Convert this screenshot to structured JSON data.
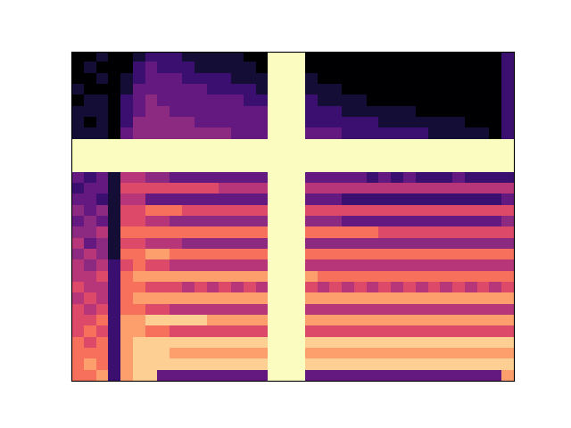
{
  "chart_data": {
    "type": "heatmap",
    "color": "magma",
    "tick_labels": false,
    "value_range": [
      0,
      10
    ],
    "cells": [
      [
        0,
        0,
        1,
        0,
        0,
        1,
        2,
        2,
        2,
        1,
        1,
        1,
        1,
        1,
        0,
        0,
        10,
        10,
        10,
        0,
        0,
        0,
        0,
        0,
        0,
        0,
        0,
        0,
        0,
        0,
        0,
        0,
        0,
        0,
        0,
        2
      ],
      [
        0,
        1,
        0,
        0,
        0,
        2,
        3,
        2,
        2,
        2,
        1,
        1,
        1,
        1,
        1,
        0,
        10,
        10,
        10,
        0,
        0,
        0,
        0,
        0,
        0,
        0,
        0,
        0,
        0,
        0,
        0,
        0,
        0,
        0,
        0,
        2
      ],
      [
        0,
        0,
        1,
        0,
        1,
        2,
        3,
        3,
        3,
        2,
        2,
        2,
        2,
        1,
        1,
        1,
        10,
        10,
        10,
        1,
        0,
        0,
        0,
        0,
        0,
        0,
        0,
        0,
        0,
        0,
        0,
        0,
        0,
        0,
        0,
        2
      ],
      [
        1,
        0,
        0,
        0,
        1,
        3,
        3,
        3,
        3,
        3,
        3,
        2,
        2,
        2,
        2,
        1,
        10,
        10,
        10,
        1,
        1,
        1,
        0,
        0,
        0,
        0,
        0,
        0,
        0,
        0,
        0,
        0,
        0,
        0,
        0,
        2
      ],
      [
        0,
        1,
        1,
        0,
        2,
        3,
        4,
        3,
        3,
        3,
        3,
        3,
        3,
        3,
        2,
        2,
        10,
        10,
        10,
        2,
        1,
        1,
        1,
        1,
        0,
        0,
        0,
        0,
        0,
        0,
        0,
        0,
        0,
        0,
        0,
        2
      ],
      [
        1,
        1,
        1,
        0,
        2,
        3,
        4,
        4,
        3,
        3,
        3,
        3,
        3,
        3,
        3,
        3,
        10,
        10,
        10,
        2,
        2,
        2,
        1,
        1,
        1,
        1,
        1,
        1,
        0,
        0,
        0,
        0,
        0,
        0,
        0,
        2
      ],
      [
        1,
        0,
        1,
        0,
        2,
        4,
        4,
        4,
        4,
        4,
        3,
        3,
        3,
        3,
        3,
        3,
        10,
        10,
        10,
        2,
        2,
        2,
        2,
        2,
        2,
        1,
        1,
        1,
        1,
        1,
        1,
        1,
        0,
        0,
        0,
        2
      ],
      [
        1,
        1,
        1,
        0,
        3,
        4,
        4,
        4,
        4,
        4,
        4,
        4,
        4,
        3,
        3,
        3,
        10,
        10,
        10,
        3,
        3,
        3,
        2,
        2,
        2,
        2,
        2,
        2,
        2,
        1,
        1,
        1,
        1,
        1,
        0,
        2
      ],
      [
        10,
        10,
        10,
        10,
        10,
        10,
        10,
        10,
        10,
        10,
        10,
        10,
        10,
        10,
        10,
        10,
        10,
        10,
        10,
        10,
        10,
        10,
        10,
        10,
        10,
        10,
        10,
        10,
        10,
        10,
        10,
        10,
        10,
        10,
        10,
        10
      ],
      [
        10,
        10,
        10,
        10,
        10,
        10,
        10,
        10,
        10,
        10,
        10,
        10,
        10,
        10,
        10,
        10,
        10,
        10,
        10,
        10,
        10,
        10,
        10,
        10,
        10,
        10,
        10,
        10,
        10,
        10,
        10,
        10,
        10,
        10,
        10,
        10
      ],
      [
        10,
        10,
        10,
        10,
        10,
        10,
        10,
        10,
        10,
        10,
        10,
        10,
        10,
        10,
        10,
        10,
        10,
        10,
        10,
        10,
        10,
        10,
        10,
        10,
        10,
        10,
        10,
        10,
        10,
        10,
        10,
        10,
        10,
        10,
        10,
        10
      ],
      [
        3,
        2,
        3,
        1,
        5,
        5,
        4,
        4,
        3,
        3,
        3,
        3,
        3,
        3,
        3,
        3,
        10,
        10,
        10,
        3,
        3,
        3,
        3,
        3,
        2,
        3,
        2,
        3,
        2,
        2,
        2,
        3,
        2,
        2,
        2,
        2
      ],
      [
        2,
        3,
        3,
        1,
        6,
        6,
        6,
        6,
        6,
        6,
        6,
        6,
        5,
        5,
        5,
        5,
        10,
        10,
        10,
        5,
        5,
        5,
        5,
        5,
        5,
        5,
        5,
        5,
        5,
        5,
        5,
        5,
        5,
        5,
        5,
        5
      ],
      [
        3,
        3,
        2,
        1,
        5,
        5,
        3,
        3,
        3,
        3,
        3,
        3,
        3,
        3,
        3,
        3,
        10,
        10,
        10,
        3,
        3,
        3,
        2,
        2,
        2,
        2,
        2,
        2,
        2,
        2,
        2,
        2,
        2,
        2,
        2,
        3
      ],
      [
        4,
        3,
        4,
        1,
        6,
        6,
        7,
        7,
        7,
        6,
        6,
        6,
        6,
        6,
        6,
        6,
        10,
        10,
        10,
        6,
        6,
        6,
        6,
        6,
        6,
        6,
        6,
        6,
        6,
        6,
        6,
        6,
        6,
        6,
        6,
        6
      ],
      [
        3,
        4,
        3,
        1,
        6,
        6,
        5,
        5,
        4,
        4,
        4,
        4,
        4,
        4,
        4,
        4,
        10,
        10,
        10,
        4,
        4,
        4,
        3,
        3,
        3,
        3,
        3,
        3,
        3,
        3,
        3,
        3,
        3,
        3,
        3,
        4
      ],
      [
        4,
        4,
        5,
        1,
        7,
        7,
        7,
        7,
        7,
        7,
        7,
        7,
        7,
        7,
        7,
        7,
        10,
        10,
        10,
        7,
        7,
        7,
        7,
        7,
        7,
        6,
        6,
        6,
        6,
        6,
        6,
        6,
        6,
        6,
        6,
        6
      ],
      [
        5,
        3,
        4,
        1,
        6,
        6,
        5,
        5,
        5,
        4,
        4,
        4,
        4,
        4,
        4,
        4,
        10,
        10,
        10,
        4,
        4,
        4,
        4,
        4,
        4,
        4,
        4,
        4,
        4,
        4,
        4,
        4,
        4,
        4,
        4,
        4
      ],
      [
        4,
        5,
        4,
        1,
        7,
        7,
        8,
        8,
        7,
        7,
        7,
        7,
        7,
        7,
        7,
        7,
        10,
        10,
        10,
        7,
        7,
        7,
        7,
        7,
        7,
        7,
        7,
        7,
        7,
        7,
        7,
        7,
        7,
        7,
        7,
        7
      ],
      [
        5,
        4,
        5,
        2,
        6,
        7,
        6,
        6,
        5,
        5,
        5,
        5,
        5,
        5,
        5,
        5,
        10,
        10,
        10,
        5,
        5,
        5,
        5,
        5,
        5,
        5,
        5,
        5,
        5,
        5,
        5,
        5,
        5,
        5,
        5,
        5
      ],
      [
        5,
        5,
        6,
        2,
        7,
        8,
        8,
        8,
        8,
        8,
        8,
        8,
        8,
        8,
        8,
        8,
        10,
        10,
        10,
        8,
        7,
        7,
        7,
        7,
        7,
        7,
        7,
        7,
        7,
        7,
        7,
        7,
        7,
        7,
        7,
        7
      ],
      [
        6,
        5,
        5,
        2,
        7,
        7,
        6,
        6,
        6,
        5,
        6,
        5,
        6,
        5,
        6,
        5,
        10,
        10,
        10,
        6,
        5,
        6,
        5,
        6,
        5,
        6,
        5,
        6,
        5,
        6,
        5,
        6,
        5,
        6,
        5,
        6
      ],
      [
        5,
        6,
        5,
        2,
        7,
        8,
        8,
        8,
        8,
        8,
        8,
        8,
        8,
        8,
        8,
        8,
        10,
        10,
        10,
        8,
        8,
        8,
        8,
        8,
        8,
        8,
        8,
        8,
        8,
        8,
        8,
        8,
        8,
        8,
        8,
        8
      ],
      [
        6,
        5,
        6,
        2,
        7,
        7,
        6,
        6,
        5,
        5,
        5,
        5,
        5,
        5,
        5,
        5,
        10,
        10,
        10,
        5,
        5,
        5,
        5,
        5,
        5,
        5,
        5,
        5,
        5,
        5,
        5,
        5,
        5,
        5,
        5,
        5
      ],
      [
        6,
        6,
        7,
        2,
        8,
        8,
        9,
        9,
        9,
        9,
        9,
        8,
        8,
        8,
        8,
        8,
        10,
        10,
        10,
        8,
        8,
        8,
        8,
        8,
        8,
        8,
        8,
        8,
        8,
        8,
        8,
        8,
        8,
        8,
        8,
        8
      ],
      [
        6,
        7,
        6,
        2,
        8,
        8,
        7,
        7,
        6,
        6,
        6,
        6,
        6,
        6,
        6,
        6,
        10,
        10,
        10,
        6,
        6,
        6,
        6,
        6,
        6,
        6,
        6,
        6,
        6,
        6,
        6,
        6,
        6,
        6,
        6,
        6
      ],
      [
        7,
        6,
        7,
        2,
        8,
        9,
        9,
        9,
        9,
        9,
        9,
        9,
        9,
        9,
        9,
        9,
        10,
        10,
        10,
        9,
        9,
        9,
        9,
        9,
        9,
        9,
        9,
        9,
        9,
        9,
        9,
        9,
        9,
        9,
        9,
        9
      ],
      [
        7,
        7,
        7,
        2,
        8,
        9,
        9,
        9,
        8,
        8,
        8,
        8,
        8,
        8,
        8,
        8,
        10,
        10,
        10,
        8,
        8,
        8,
        8,
        8,
        8,
        8,
        8,
        8,
        8,
        8,
        8,
        8,
        8,
        8,
        8,
        8
      ],
      [
        7,
        8,
        7,
        2,
        8,
        9,
        9,
        9,
        9,
        9,
        9,
        9,
        9,
        9,
        9,
        9,
        10,
        10,
        10,
        9,
        9,
        9,
        9,
        9,
        9,
        9,
        9,
        9,
        9,
        9,
        9,
        9,
        9,
        9,
        9,
        9
      ],
      [
        7,
        7,
        8,
        2,
        8,
        9,
        9,
        3,
        3,
        3,
        3,
        3,
        3,
        3,
        3,
        3,
        10,
        10,
        10,
        3,
        3,
        3,
        3,
        3,
        3,
        3,
        3,
        3,
        3,
        3,
        3,
        3,
        3,
        3,
        3,
        8
      ]
    ]
  }
}
